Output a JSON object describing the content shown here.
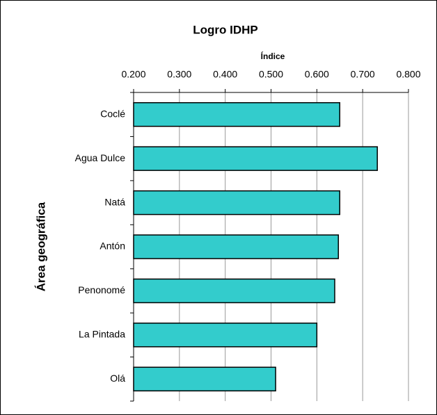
{
  "chart_data": {
    "type": "bar",
    "orientation": "horizontal",
    "title": "Logro IDHP",
    "x_label": "Índice",
    "y_label": "Área geográfica",
    "categories": [
      "Coclé",
      "Agua Dulce",
      "Natá",
      "Antón",
      "Penonomé",
      "La Pintada",
      "Olá"
    ],
    "values": [
      0.65,
      0.732,
      0.65,
      0.647,
      0.639,
      0.6,
      0.51
    ],
    "color": "#33cccc",
    "xlim": [
      0.2,
      0.8
    ],
    "xticks": [
      {
        "value": 0.2,
        "label": "0.200"
      },
      {
        "value": 0.3,
        "label": "0.300"
      },
      {
        "value": 0.4,
        "label": "0.400"
      },
      {
        "value": 0.5,
        "label": "0.500"
      },
      {
        "value": 0.6,
        "label": "0.600"
      },
      {
        "value": 0.7,
        "label": "0.700"
      },
      {
        "value": 0.8,
        "label": "0.800"
      }
    ],
    "grid": true
  }
}
